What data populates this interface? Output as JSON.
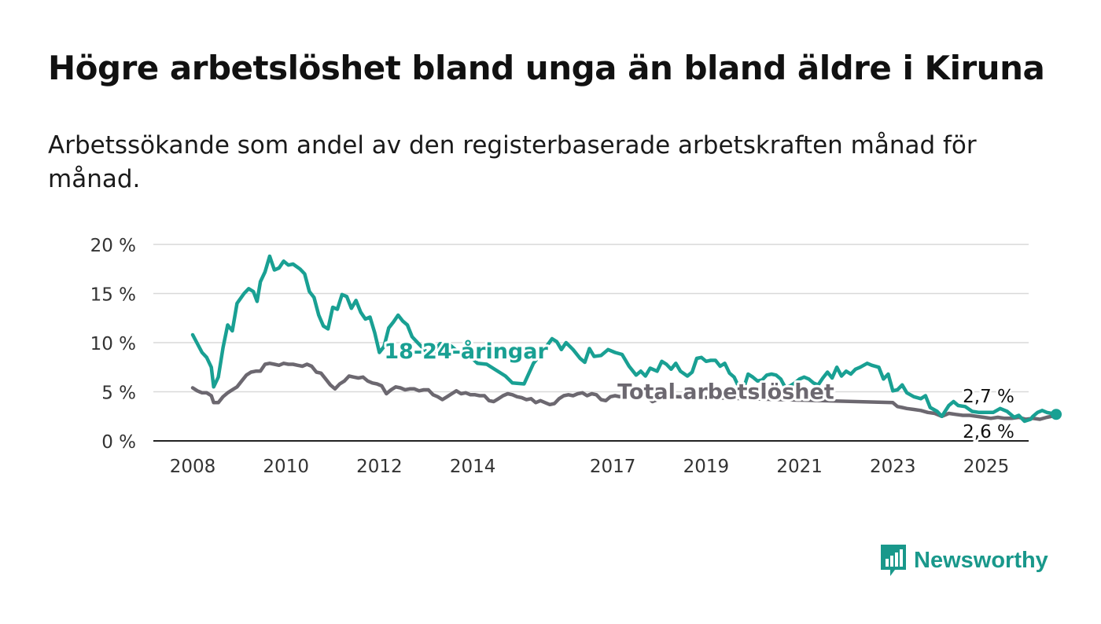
{
  "title": "Högre arbetslöshet bland unga än bland äldre i Kiruna",
  "subtitle": "Arbetssökande som andel av den registerbaserade arbetskraften månad för månad.",
  "brand": {
    "name": "Newsworthy",
    "color": "#19988b",
    "icon": "bar-chart-speech-bubble-icon"
  },
  "colors": {
    "youth": "#19a093",
    "total": "#6c6870",
    "grid": "#d9d9d9",
    "axis": "#222222"
  },
  "chart_data": {
    "type": "line",
    "xlabel": "",
    "ylabel": "",
    "xlim": [
      2008,
      2026
    ],
    "ylim": [
      0,
      20
    ],
    "grid": "horizontal",
    "y_ticks": [
      0,
      5,
      10,
      15,
      20
    ],
    "y_tick_labels": [
      "0 %",
      "5 %",
      "10 %",
      "15 %",
      "20 %"
    ],
    "x_ticks": [
      2008,
      2010,
      2012,
      2014,
      2017,
      2019,
      2021,
      2023,
      2025
    ],
    "x_tick_labels": [
      "2008",
      "2010",
      "2012",
      "2014",
      "2017",
      "2019",
      "2021",
      "2023",
      "2025"
    ],
    "series": [
      {
        "name": "18-24-åringar",
        "key": "youth",
        "label_pos": [
          2012.1,
          8.4
        ],
        "end_label": "2,7 %",
        "points": [
          [
            2008.0,
            10.8
          ],
          [
            2008.2,
            9.0
          ],
          [
            2008.3,
            8.5
          ],
          [
            2008.4,
            7.5
          ],
          [
            2008.45,
            5.5
          ],
          [
            2008.55,
            6.5
          ],
          [
            2008.65,
            9.5
          ],
          [
            2008.75,
            11.8
          ],
          [
            2008.85,
            11.2
          ],
          [
            2008.95,
            14.0
          ],
          [
            2009.1,
            15.0
          ],
          [
            2009.2,
            15.5
          ],
          [
            2009.3,
            15.2
          ],
          [
            2009.38,
            14.2
          ],
          [
            2009.45,
            16.2
          ],
          [
            2009.55,
            17.2
          ],
          [
            2009.65,
            18.8
          ],
          [
            2009.75,
            17.4
          ],
          [
            2009.85,
            17.6
          ],
          [
            2009.95,
            18.3
          ],
          [
            2010.05,
            17.9
          ],
          [
            2010.15,
            18.0
          ],
          [
            2010.3,
            17.5
          ],
          [
            2010.4,
            17.0
          ],
          [
            2010.5,
            15.2
          ],
          [
            2010.6,
            14.6
          ],
          [
            2010.7,
            12.8
          ],
          [
            2010.8,
            11.7
          ],
          [
            2010.9,
            11.4
          ],
          [
            2011.0,
            13.6
          ],
          [
            2011.1,
            13.4
          ],
          [
            2011.2,
            14.9
          ],
          [
            2011.3,
            14.7
          ],
          [
            2011.4,
            13.5
          ],
          [
            2011.5,
            14.3
          ],
          [
            2011.6,
            13.1
          ],
          [
            2011.7,
            12.4
          ],
          [
            2011.8,
            12.6
          ],
          [
            2011.9,
            11.0
          ],
          [
            2012.0,
            9.0
          ],
          [
            2012.1,
            9.6
          ],
          [
            2012.2,
            11.5
          ],
          [
            2012.3,
            12.1
          ],
          [
            2012.4,
            12.8
          ],
          [
            2012.5,
            12.2
          ],
          [
            2012.6,
            11.8
          ],
          [
            2012.7,
            10.6
          ],
          [
            2012.8,
            10.1
          ],
          [
            2012.9,
            9.6
          ],
          [
            2013.0,
            9.1
          ],
          [
            2013.1,
            8.6
          ],
          [
            2013.3,
            9.9
          ],
          [
            2013.5,
            9.8
          ],
          [
            2013.7,
            9.0
          ],
          [
            2013.9,
            8.8
          ],
          [
            2014.1,
            7.9
          ],
          [
            2014.3,
            7.8
          ],
          [
            2014.5,
            7.2
          ],
          [
            2014.7,
            6.6
          ],
          [
            2014.85,
            5.9
          ],
          [
            2015.1,
            5.8
          ],
          [
            2015.3,
            7.9
          ],
          [
            2015.5,
            9.1
          ],
          [
            2015.7,
            10.4
          ],
          [
            2015.8,
            10.1
          ],
          [
            2015.9,
            9.3
          ],
          [
            2016.0,
            10.0
          ],
          [
            2016.15,
            9.3
          ],
          [
            2016.3,
            8.4
          ],
          [
            2016.4,
            8.0
          ],
          [
            2016.5,
            9.4
          ],
          [
            2016.6,
            8.6
          ],
          [
            2016.75,
            8.7
          ],
          [
            2016.9,
            9.3
          ],
          [
            2017.05,
            9.0
          ],
          [
            2017.2,
            8.8
          ],
          [
            2017.35,
            7.6
          ],
          [
            2017.5,
            6.7
          ],
          [
            2017.6,
            7.1
          ],
          [
            2017.7,
            6.6
          ],
          [
            2017.8,
            7.4
          ],
          [
            2017.95,
            7.1
          ],
          [
            2018.05,
            8.1
          ],
          [
            2018.15,
            7.8
          ],
          [
            2018.25,
            7.3
          ],
          [
            2018.35,
            7.9
          ],
          [
            2018.45,
            7.1
          ],
          [
            2018.6,
            6.6
          ],
          [
            2018.7,
            7.0
          ],
          [
            2018.8,
            8.4
          ],
          [
            2018.9,
            8.5
          ],
          [
            2019.0,
            8.1
          ],
          [
            2019.1,
            8.2
          ],
          [
            2019.2,
            8.2
          ],
          [
            2019.3,
            7.6
          ],
          [
            2019.4,
            7.9
          ],
          [
            2019.5,
            6.9
          ],
          [
            2019.6,
            6.5
          ],
          [
            2019.7,
            5.5
          ],
          [
            2019.8,
            5.3
          ],
          [
            2019.9,
            6.8
          ],
          [
            2020.0,
            6.5
          ],
          [
            2020.1,
            6.1
          ],
          [
            2020.2,
            6.2
          ],
          [
            2020.3,
            6.7
          ],
          [
            2020.4,
            6.8
          ],
          [
            2020.5,
            6.7
          ],
          [
            2020.6,
            6.3
          ],
          [
            2020.7,
            5.4
          ],
          [
            2020.8,
            5.6
          ],
          [
            2020.9,
            5.9
          ],
          [
            2021.0,
            6.3
          ],
          [
            2021.1,
            6.5
          ],
          [
            2021.2,
            6.3
          ],
          [
            2021.3,
            5.9
          ],
          [
            2021.4,
            5.7
          ],
          [
            2021.5,
            6.4
          ],
          [
            2021.6,
            7.0
          ],
          [
            2021.7,
            6.4
          ],
          [
            2021.8,
            7.5
          ],
          [
            2021.9,
            6.6
          ],
          [
            2022.0,
            7.1
          ],
          [
            2022.1,
            6.8
          ],
          [
            2022.2,
            7.3
          ],
          [
            2022.3,
            7.5
          ],
          [
            2022.45,
            7.9
          ],
          [
            2022.55,
            7.7
          ],
          [
            2022.7,
            7.5
          ],
          [
            2022.8,
            6.3
          ],
          [
            2022.9,
            6.8
          ],
          [
            2023.0,
            5.1
          ],
          [
            2023.1,
            5.2
          ],
          [
            2023.2,
            5.7
          ],
          [
            2023.3,
            4.9
          ],
          [
            2023.45,
            4.5
          ],
          [
            2023.6,
            4.3
          ],
          [
            2023.7,
            4.6
          ],
          [
            2023.8,
            3.4
          ],
          [
            2023.95,
            3.0
          ],
          [
            2024.05,
            2.5
          ],
          [
            2024.2,
            3.6
          ],
          [
            2024.3,
            4.0
          ],
          [
            2024.4,
            3.6
          ],
          [
            2024.55,
            3.5
          ],
          [
            2024.7,
            3.0
          ],
          [
            2024.85,
            2.9
          ],
          [
            2025.0,
            2.9
          ],
          [
            2025.15,
            2.9
          ],
          [
            2025.3,
            3.3
          ],
          [
            2025.45,
            3.0
          ],
          [
            2025.6,
            2.4
          ],
          [
            2025.7,
            2.6
          ],
          [
            2025.82,
            2.0
          ],
          [
            2025.95,
            2.2
          ],
          [
            2026.0,
            2.5
          ],
          [
            2026.1,
            2.9
          ],
          [
            2026.2,
            3.1
          ],
          [
            2026.3,
            2.9
          ],
          [
            2026.4,
            2.8
          ],
          [
            2026.5,
            2.7
          ]
        ]
      },
      {
        "name": "Total arbetslöshet",
        "key": "total",
        "label_pos": [
          2017.1,
          4.3
        ],
        "end_label": "2,6 %",
        "points": [
          [
            2008.0,
            5.4
          ],
          [
            2008.1,
            5.1
          ],
          [
            2008.2,
            4.9
          ],
          [
            2008.3,
            4.9
          ],
          [
            2008.4,
            4.6
          ],
          [
            2008.45,
            3.9
          ],
          [
            2008.55,
            3.9
          ],
          [
            2008.65,
            4.5
          ],
          [
            2008.75,
            4.9
          ],
          [
            2008.85,
            5.2
          ],
          [
            2008.95,
            5.5
          ],
          [
            2009.05,
            6.1
          ],
          [
            2009.15,
            6.7
          ],
          [
            2009.25,
            7.0
          ],
          [
            2009.35,
            7.1
          ],
          [
            2009.45,
            7.1
          ],
          [
            2009.55,
            7.8
          ],
          [
            2009.65,
            7.9
          ],
          [
            2009.75,
            7.8
          ],
          [
            2009.85,
            7.7
          ],
          [
            2009.95,
            7.9
          ],
          [
            2010.05,
            7.8
          ],
          [
            2010.15,
            7.8
          ],
          [
            2010.25,
            7.7
          ],
          [
            2010.35,
            7.6
          ],
          [
            2010.45,
            7.8
          ],
          [
            2010.55,
            7.6
          ],
          [
            2010.65,
            7.0
          ],
          [
            2010.75,
            6.9
          ],
          [
            2010.85,
            6.3
          ],
          [
            2010.95,
            5.7
          ],
          [
            2011.05,
            5.3
          ],
          [
            2011.15,
            5.8
          ],
          [
            2011.25,
            6.1
          ],
          [
            2011.35,
            6.6
          ],
          [
            2011.45,
            6.5
          ],
          [
            2011.55,
            6.4
          ],
          [
            2011.65,
            6.5
          ],
          [
            2011.75,
            6.1
          ],
          [
            2011.85,
            5.9
          ],
          [
            2011.95,
            5.8
          ],
          [
            2012.05,
            5.6
          ],
          [
            2012.15,
            4.8
          ],
          [
            2012.25,
            5.2
          ],
          [
            2012.35,
            5.5
          ],
          [
            2012.45,
            5.4
          ],
          [
            2012.55,
            5.2
          ],
          [
            2012.65,
            5.3
          ],
          [
            2012.75,
            5.3
          ],
          [
            2012.85,
            5.1
          ],
          [
            2012.95,
            5.2
          ],
          [
            2013.05,
            5.2
          ],
          [
            2013.15,
            4.7
          ],
          [
            2013.25,
            4.5
          ],
          [
            2013.35,
            4.2
          ],
          [
            2013.45,
            4.5
          ],
          [
            2013.55,
            4.8
          ],
          [
            2013.65,
            5.1
          ],
          [
            2013.75,
            4.8
          ],
          [
            2013.85,
            4.9
          ],
          [
            2013.95,
            4.7
          ],
          [
            2014.05,
            4.7
          ],
          [
            2014.15,
            4.6
          ],
          [
            2014.25,
            4.6
          ],
          [
            2014.35,
            4.1
          ],
          [
            2014.45,
            4.0
          ],
          [
            2014.55,
            4.3
          ],
          [
            2014.65,
            4.6
          ],
          [
            2014.75,
            4.8
          ],
          [
            2014.85,
            4.7
          ],
          [
            2014.95,
            4.5
          ],
          [
            2015.05,
            4.4
          ],
          [
            2015.15,
            4.2
          ],
          [
            2015.25,
            4.3
          ],
          [
            2015.35,
            3.9
          ],
          [
            2015.45,
            4.1
          ],
          [
            2015.55,
            3.9
          ],
          [
            2015.65,
            3.7
          ],
          [
            2015.75,
            3.8
          ],
          [
            2015.85,
            4.3
          ],
          [
            2015.95,
            4.6
          ],
          [
            2016.05,
            4.7
          ],
          [
            2016.15,
            4.6
          ],
          [
            2016.25,
            4.8
          ],
          [
            2016.35,
            4.9
          ],
          [
            2016.45,
            4.6
          ],
          [
            2016.55,
            4.8
          ],
          [
            2016.65,
            4.7
          ],
          [
            2016.75,
            4.2
          ],
          [
            2016.85,
            4.1
          ],
          [
            2016.95,
            4.5
          ],
          [
            2017.05,
            4.6
          ],
          [
            2017.15,
            4.5
          ],
          [
            2017.25,
            4.7
          ],
          [
            2017.35,
            4.6
          ],
          [
            2017.45,
            4.5
          ],
          [
            2017.55,
            4.7
          ],
          [
            2017.65,
            4.6
          ],
          [
            2017.75,
            4.4
          ],
          [
            2017.85,
            4.0
          ],
          [
            2017.95,
            4.2
          ],
          [
            2018.05,
            4.4
          ],
          [
            2018.15,
            4.3
          ],
          [
            2018.25,
            4.6
          ],
          [
            2018.35,
            4.5
          ],
          [
            2023.0,
            3.9
          ],
          [
            2023.1,
            3.5
          ],
          [
            2023.2,
            3.4
          ],
          [
            2023.3,
            3.3
          ],
          [
            2023.45,
            3.2
          ],
          [
            2023.6,
            3.1
          ],
          [
            2023.75,
            2.9
          ],
          [
            2023.9,
            2.8
          ],
          [
            2024.05,
            2.5
          ],
          [
            2024.2,
            2.8
          ],
          [
            2024.35,
            2.7
          ],
          [
            2024.5,
            2.6
          ],
          [
            2024.65,
            2.6
          ],
          [
            2024.8,
            2.5
          ],
          [
            2024.95,
            2.4
          ],
          [
            2025.1,
            2.3
          ],
          [
            2025.25,
            2.4
          ],
          [
            2025.4,
            2.3
          ],
          [
            2025.55,
            2.3
          ],
          [
            2025.7,
            2.4
          ],
          [
            2025.85,
            2.2
          ],
          [
            2026.0,
            2.3
          ],
          [
            2026.15,
            2.2
          ],
          [
            2026.3,
            2.4
          ],
          [
            2026.5,
            2.6
          ]
        ]
      }
    ]
  }
}
